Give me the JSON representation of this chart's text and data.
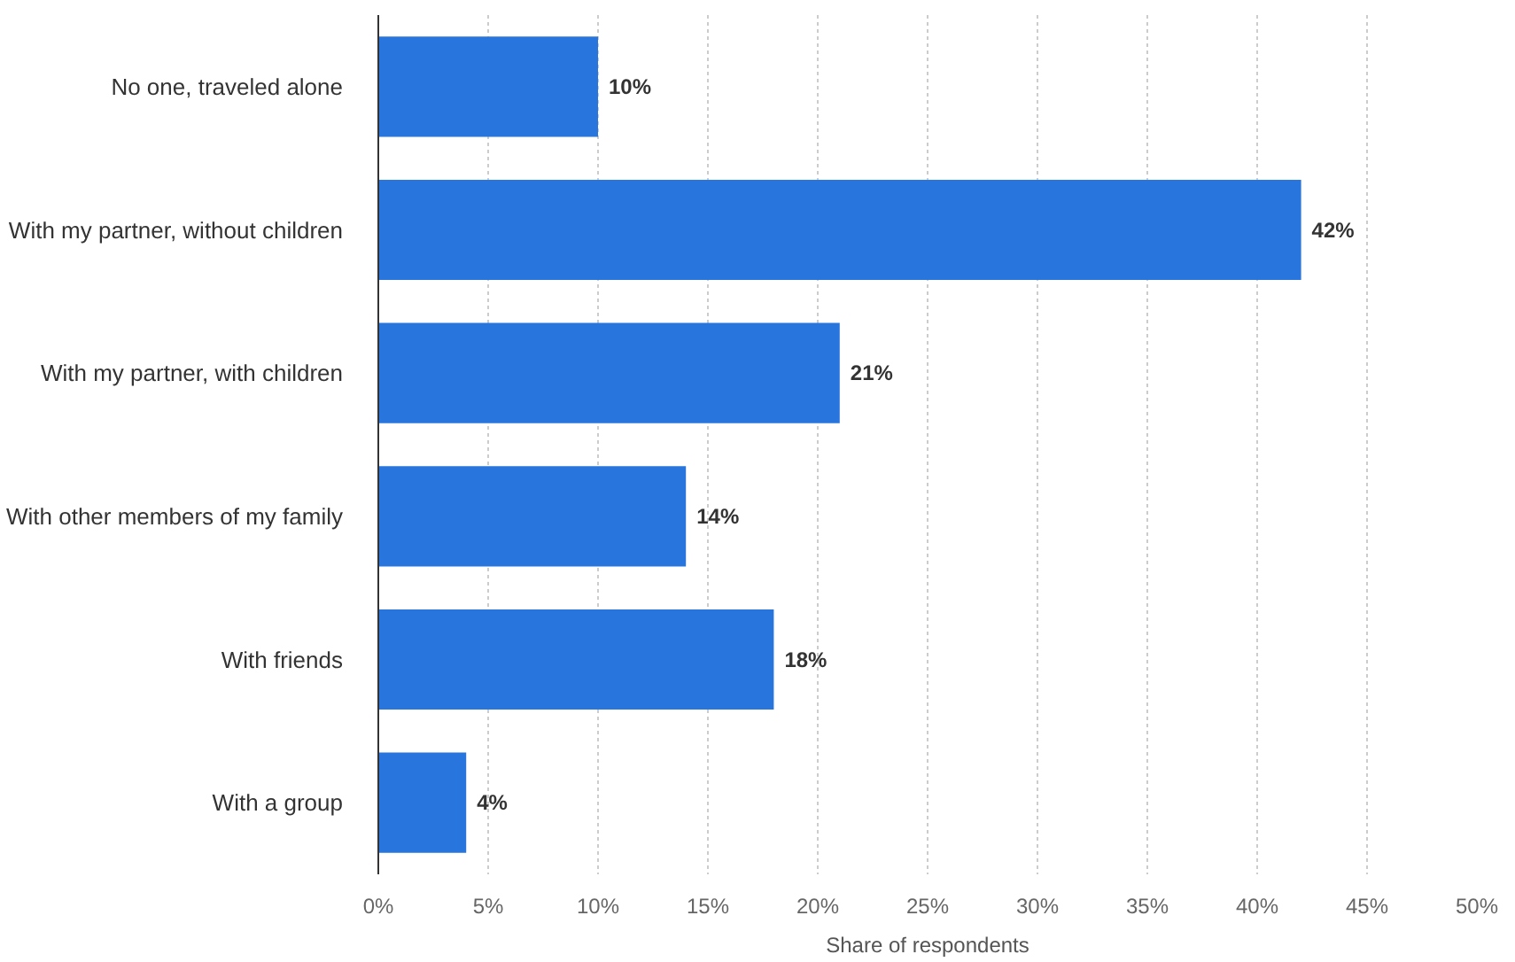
{
  "chart_data": {
    "type": "bar",
    "orientation": "horizontal",
    "categories": [
      "No one, traveled alone",
      "With my partner, without children",
      "With my partner, with children",
      "With other members of my family",
      "With friends",
      "With a group"
    ],
    "values": [
      10,
      42,
      21,
      14,
      18,
      4
    ],
    "value_labels": [
      "10%",
      "42%",
      "21%",
      "14%",
      "18%",
      "4%"
    ],
    "color": "#2876dd",
    "xlabel": "Share of respondents",
    "xlim": [
      0,
      50
    ],
    "xticks": [
      {
        "value": 0,
        "label": "0%"
      },
      {
        "value": 5,
        "label": "5%"
      },
      {
        "value": 10,
        "label": "10%"
      },
      {
        "value": 15,
        "label": "15%"
      },
      {
        "value": 20,
        "label": "20%"
      },
      {
        "value": 25,
        "label": "25%"
      },
      {
        "value": 30,
        "label": "30%"
      },
      {
        "value": 35,
        "label": "35%"
      },
      {
        "value": 40,
        "label": "40%"
      },
      {
        "value": 45,
        "label": "45%"
      },
      {
        "value": 50,
        "label": "50%"
      }
    ],
    "grid": "x"
  }
}
